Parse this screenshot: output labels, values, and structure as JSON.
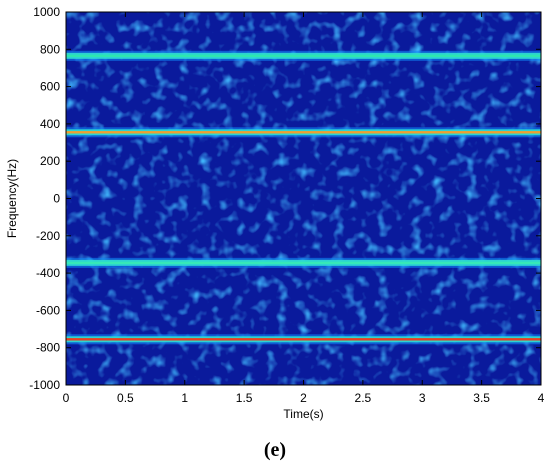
{
  "caption": "(e)",
  "chart_data": {
    "type": "heatmap",
    "title": "",
    "xlabel": "Time(s)",
    "ylabel": "Frequency(Hz)",
    "xlim": [
      0,
      4
    ],
    "ylim": [
      -1000,
      1000
    ],
    "xticks": [
      0,
      0.5,
      1,
      1.5,
      2,
      2.5,
      3,
      3.5,
      4
    ],
    "xtick_labels": [
      "0",
      "0.5",
      "1",
      "1.5",
      "2",
      "2.5",
      "3",
      "3.5",
      "4"
    ],
    "yticks": [
      1000,
      800,
      600,
      400,
      200,
      0,
      -200,
      -400,
      -600,
      -800,
      -1000
    ],
    "ytick_labels": [
      "1000",
      "800",
      "600",
      "400",
      "200",
      "0",
      "-200",
      "-400",
      "-600",
      "-800",
      "-1000"
    ],
    "grid": false,
    "colormap": "jet",
    "background_color": "#0a1a9c",
    "bands": [
      {
        "frequency": 765,
        "color": "#2ee6b0"
      },
      {
        "frequency": 355,
        "color": "#f0a030"
      },
      {
        "frequency": -345,
        "color": "#36e8b8"
      },
      {
        "frequency": -755,
        "color": "#e84020"
      }
    ]
  }
}
